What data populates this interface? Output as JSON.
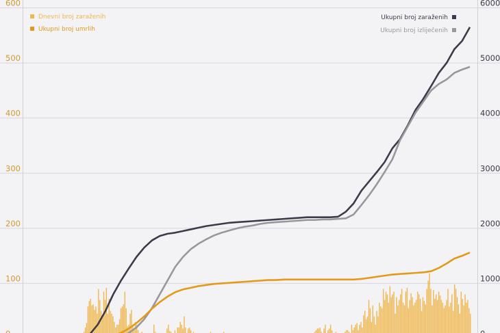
{
  "chart_data": {
    "type": "bar+line",
    "title": "",
    "left_axis": {
      "ticks": [
        0,
        100,
        200,
        300,
        400,
        500,
        600
      ],
      "ylim": [
        0,
        600
      ]
    },
    "right_axis": {
      "ticks": [
        0,
        1000,
        2000,
        3000,
        4000,
        5000,
        6000
      ],
      "ylim": [
        0,
        6000
      ]
    },
    "legend": [
      {
        "label": "Dnevni broj zaraženih",
        "color": "#f0b74c",
        "position": "top-left"
      },
      {
        "label": "Ukupni broj umrlih",
        "color": "#e29a18",
        "position": "top-left"
      },
      {
        "label": "Ukupni broj zaraženih",
        "color": "#3e3a4a",
        "position": "top-right"
      },
      {
        "label": "Ukupni broj izliječenih",
        "color": "#98979c",
        "position": "top-right"
      }
    ],
    "series": [
      {
        "name": "Dnevni broj zaraženih",
        "type": "bar",
        "axis": "left",
        "color": "#f0b74c",
        "values": [
          8,
          12,
          20,
          28,
          58,
          68,
          72,
          60,
          62,
          52,
          58,
          45,
          90,
          70,
          50,
          40,
          85,
          70,
          92,
          45,
          72,
          50,
          45,
          40,
          30,
          20,
          25,
          25,
          35,
          55,
          58,
          62,
          85,
          55,
          22,
          25,
          45,
          52,
          25,
          18,
          30,
          25,
          15,
          8,
          10,
          12,
          8,
          10,
          5,
          5,
          6,
          5,
          5,
          4,
          25,
          12,
          10,
          8,
          8,
          5,
          5,
          4,
          5,
          8,
          18,
          25,
          14,
          12,
          6,
          8,
          15,
          10,
          20,
          20,
          30,
          25,
          18,
          40,
          20,
          10,
          18,
          20,
          15,
          8,
          12,
          5,
          5,
          6,
          5,
          5,
          4,
          4,
          5,
          5,
          8,
          10,
          8,
          12,
          5,
          7,
          8,
          10,
          8,
          5,
          5,
          6,
          10,
          12,
          10,
          8,
          8,
          8,
          5,
          5,
          4,
          5,
          2,
          2,
          2,
          2,
          3,
          2,
          2,
          2,
          2,
          2,
          1,
          1,
          1,
          1,
          1,
          1,
          1,
          1,
          1,
          1,
          1,
          1,
          1,
          1,
          1,
          1,
          1,
          1,
          1,
          1,
          1,
          1,
          1,
          1,
          1,
          1,
          1,
          1,
          1,
          1,
          1,
          1,
          1,
          1,
          1,
          1,
          1,
          1,
          1,
          1,
          1,
          1,
          1,
          1,
          5,
          3,
          6,
          8,
          5,
          8,
          12,
          15,
          18,
          18,
          20,
          12,
          10,
          18,
          25,
          8,
          15,
          18,
          25,
          15,
          10,
          5,
          12,
          10,
          5,
          3,
          5,
          5,
          10,
          12,
          15,
          15,
          12,
          8,
          25,
          15,
          20,
          25,
          28,
          15,
          25,
          30,
          20,
          42,
          50,
          35,
          40,
          70,
          55,
          30,
          60,
          40,
          25,
          50,
          40,
          65,
          58,
          55,
          90,
          70,
          85,
          80,
          65,
          95,
          75,
          80,
          85,
          45,
          75,
          60,
          70,
          80,
          90,
          65,
          60,
          85,
          92,
          55,
          70,
          82,
          75,
          60,
          65,
          70,
          85,
          80,
          72,
          50,
          75,
          68,
          62,
          90,
          105,
          118,
          90,
          60,
          88,
          72,
          80,
          70,
          85,
          78,
          70,
          65,
          55,
          60,
          70,
          90,
          58,
          65,
          80,
          50,
          98,
          90,
          75,
          62,
          45,
          85,
          72,
          60,
          80,
          65,
          70,
          55,
          45
        ]
      },
      {
        "name": "Ukupni broj zaraženih",
        "type": "line",
        "axis": "right",
        "color": "#3e3a4a",
        "x": [
          0,
          2,
          4,
          6,
          8,
          10,
          12,
          14,
          16,
          18,
          20,
          22,
          24,
          26,
          28,
          30,
          32,
          34,
          36,
          38,
          40,
          42,
          44,
          46,
          48,
          50,
          52,
          54,
          56,
          58,
          60,
          62,
          64,
          66,
          68,
          70,
          72,
          74,
          76,
          78,
          80,
          82,
          84,
          86,
          88,
          90,
          92,
          94,
          96,
          98,
          100
        ],
        "values": [
          5,
          80,
          250,
          500,
          800,
          1050,
          1270,
          1480,
          1650,
          1780,
          1860,
          1900,
          1920,
          1950,
          1980,
          2010,
          2040,
          2060,
          2080,
          2100,
          2110,
          2120,
          2130,
          2140,
          2150,
          2160,
          2170,
          2180,
          2190,
          2200,
          2200,
          2200,
          2200,
          2210,
          2300,
          2450,
          2680,
          2850,
          3020,
          3200,
          3450,
          3620,
          3870,
          4150,
          4350,
          4580,
          4820,
          5000,
          5250,
          5400,
          5650
        ]
      },
      {
        "name": "Ukupni broj izliječenih",
        "type": "line",
        "axis": "right",
        "color": "#98979c",
        "x": [
          0,
          2,
          4,
          6,
          8,
          10,
          12,
          14,
          16,
          18,
          20,
          22,
          24,
          26,
          28,
          30,
          32,
          34,
          36,
          38,
          40,
          42,
          44,
          46,
          48,
          50,
          52,
          54,
          56,
          58,
          60,
          62,
          64,
          66,
          68,
          70,
          72,
          74,
          76,
          78,
          80,
          82,
          84,
          86,
          88,
          90,
          92,
          94,
          96,
          98,
          100
        ],
        "values": [
          0,
          0,
          0,
          0,
          0,
          30,
          100,
          200,
          350,
          550,
          800,
          1050,
          1300,
          1480,
          1620,
          1720,
          1800,
          1870,
          1920,
          1960,
          2000,
          2030,
          2050,
          2080,
          2100,
          2110,
          2120,
          2130,
          2140,
          2150,
          2150,
          2160,
          2160,
          2170,
          2180,
          2250,
          2420,
          2600,
          2800,
          3020,
          3250,
          3600,
          3850,
          4100,
          4300,
          4500,
          4620,
          4700,
          4820,
          4880,
          4930
        ]
      },
      {
        "name": "Ukupni broj umrlih",
        "type": "line",
        "axis": "left",
        "color": "#e29a18",
        "x": [
          0,
          2,
          4,
          6,
          8,
          10,
          12,
          14,
          16,
          18,
          20,
          22,
          24,
          26,
          28,
          30,
          32,
          34,
          36,
          38,
          40,
          42,
          44,
          46,
          48,
          50,
          52,
          54,
          56,
          58,
          60,
          62,
          64,
          66,
          68,
          70,
          72,
          74,
          76,
          78,
          80,
          82,
          84,
          86,
          88,
          90,
          92,
          94,
          96,
          98,
          100
        ],
        "values": [
          0,
          0,
          1,
          3,
          6,
          10,
          18,
          28,
          40,
          54,
          66,
          76,
          84,
          89,
          92,
          95,
          97,
          99,
          100,
          101,
          102,
          103,
          104,
          105,
          106,
          106,
          107,
          107,
          107,
          107,
          107,
          107,
          107,
          107,
          107,
          107,
          108,
          110,
          112,
          114,
          116,
          117,
          118,
          119,
          120,
          122,
          128,
          136,
          145,
          150,
          156
        ]
      }
    ]
  }
}
